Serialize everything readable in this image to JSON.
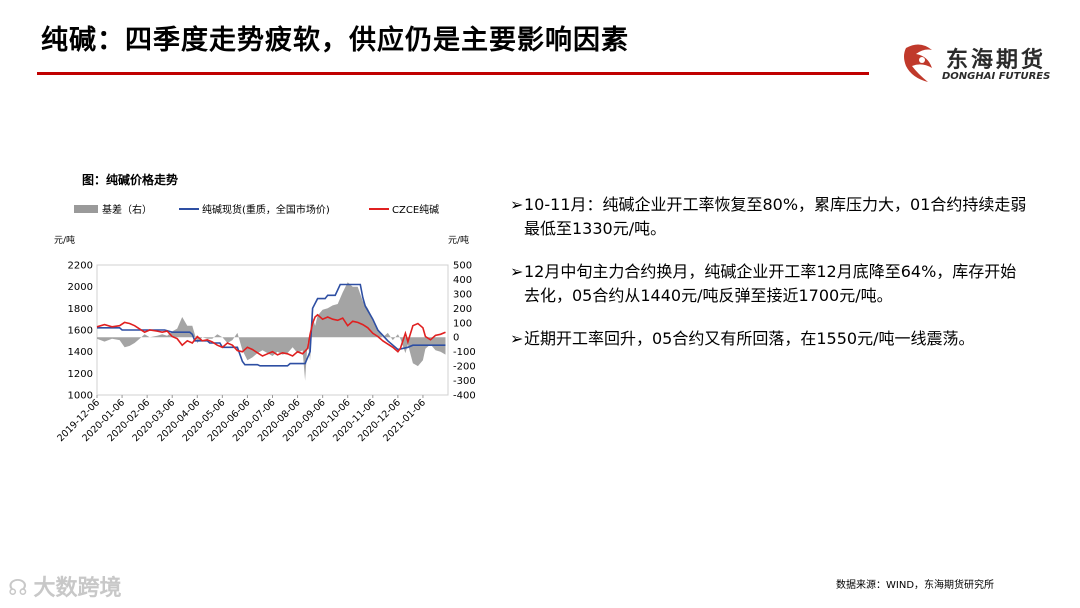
{
  "slide": {
    "title": "纯碱：四季度走势疲软，供应仍是主要影响因素",
    "logo_cn": "东海期货",
    "logo_en": "DONGHAI FUTURES",
    "source": "数据来源：WIND，东海期货研究所",
    "watermark": "大数跨境",
    "bullets": [
      "10-11月：纯碱企业开工率恢复至80%，累库压力大，01合约持续走弱最低至1330元/吨。",
      "12月中旬主力合约换月，纯碱企业开工率12月底降至64%，库存开始去化，05合约从1440元/吨反弹至接近1700元/吨。",
      "近期开工率回升，05合约又有所回落，在1550元/吨一线震荡。"
    ],
    "colors": {
      "accent": "#c00000",
      "spot": "#2e4fa3",
      "futures": "#e02020",
      "basis": "#9a9a9a"
    }
  },
  "chart_data": {
    "type": "line",
    "caption": "图：纯碱价格走势",
    "y_left_label": "元/吨",
    "y_right_label": "元/吨",
    "ylim_left": [
      1000,
      2200
    ],
    "ylim_right": [
      -400,
      500
    ],
    "yticks_left": [
      "2200",
      "2000",
      "1800",
      "1600",
      "1400",
      "1200",
      "1000"
    ],
    "yticks_right": [
      "500",
      "400",
      "300",
      "200",
      "100",
      "0",
      "-100",
      "-200",
      "-300",
      "-400"
    ],
    "x_ticks": [
      "2019-12-06",
      "2020-01-06",
      "2020-02-06",
      "2020-03-06",
      "2020-04-06",
      "2020-05-06",
      "2020-06-06",
      "2020-07-06",
      "2020-08-06",
      "2020-09-06",
      "2020-10-06",
      "2020-11-06",
      "2020-12-06",
      "2021-01-06"
    ],
    "x_range_months": [
      0,
      14
    ],
    "legend": [
      "基差（右）",
      "纯碱现货(重质，全国市场价)",
      "CZCE纯碱"
    ],
    "series": [
      {
        "name": "纯碱现货(重质，全国市场价)",
        "axis": "left",
        "points": [
          [
            0,
            1620
          ],
          [
            0.3,
            1620
          ],
          [
            0.9,
            1620
          ],
          [
            1.0,
            1600
          ],
          [
            1.6,
            1600
          ],
          [
            2.0,
            1600
          ],
          [
            2.7,
            1600
          ],
          [
            3.0,
            1580
          ],
          [
            3.7,
            1580
          ],
          [
            3.8,
            1560
          ],
          [
            3.9,
            1500
          ],
          [
            4.4,
            1500
          ],
          [
            4.5,
            1480
          ],
          [
            4.9,
            1480
          ],
          [
            5.0,
            1440
          ],
          [
            5.6,
            1440
          ],
          [
            5.8,
            1310
          ],
          [
            5.9,
            1280
          ],
          [
            6.4,
            1280
          ],
          [
            6.5,
            1270
          ],
          [
            7.2,
            1270
          ],
          [
            7.6,
            1270
          ],
          [
            7.7,
            1290
          ],
          [
            8.1,
            1290
          ],
          [
            8.3,
            1290
          ],
          [
            8.5,
            1400
          ],
          [
            8.6,
            1800
          ],
          [
            8.8,
            1890
          ],
          [
            9.1,
            1890
          ],
          [
            9.2,
            1920
          ],
          [
            9.5,
            1920
          ],
          [
            9.7,
            2020
          ],
          [
            10.3,
            2020
          ],
          [
            10.5,
            2020
          ],
          [
            10.6,
            1900
          ],
          [
            10.7,
            1820
          ],
          [
            11.0,
            1700
          ],
          [
            11.2,
            1600
          ],
          [
            11.6,
            1500
          ],
          [
            12.0,
            1420
          ],
          [
            12.4,
            1440
          ],
          [
            12.6,
            1460
          ],
          [
            13.1,
            1460
          ],
          [
            13.6,
            1460
          ],
          [
            13.9,
            1460
          ]
        ]
      },
      {
        "name": "CZCE纯碱",
        "axis": "left",
        "points": [
          [
            0,
            1630
          ],
          [
            0.3,
            1650
          ],
          [
            0.6,
            1630
          ],
          [
            0.9,
            1640
          ],
          [
            1.1,
            1670
          ],
          [
            1.3,
            1660
          ],
          [
            1.5,
            1640
          ],
          [
            1.7,
            1610
          ],
          [
            1.9,
            1580
          ],
          [
            2.1,
            1600
          ],
          [
            2.4,
            1590
          ],
          [
            2.6,
            1580
          ],
          [
            2.8,
            1590
          ],
          [
            3.0,
            1540
          ],
          [
            3.2,
            1520
          ],
          [
            3.4,
            1460
          ],
          [
            3.6,
            1500
          ],
          [
            3.8,
            1480
          ],
          [
            4.0,
            1540
          ],
          [
            4.2,
            1500
          ],
          [
            4.4,
            1510
          ],
          [
            4.6,
            1490
          ],
          [
            4.8,
            1460
          ],
          [
            5.0,
            1440
          ],
          [
            5.2,
            1480
          ],
          [
            5.4,
            1460
          ],
          [
            5.6,
            1410
          ],
          [
            5.8,
            1400
          ],
          [
            6.0,
            1440
          ],
          [
            6.2,
            1420
          ],
          [
            6.4,
            1390
          ],
          [
            6.6,
            1360
          ],
          [
            6.8,
            1380
          ],
          [
            7.0,
            1400
          ],
          [
            7.2,
            1370
          ],
          [
            7.4,
            1390
          ],
          [
            7.6,
            1380
          ],
          [
            7.8,
            1360
          ],
          [
            8.0,
            1400
          ],
          [
            8.2,
            1380
          ],
          [
            8.4,
            1430
          ],
          [
            8.5,
            1560
          ],
          [
            8.6,
            1660
          ],
          [
            8.7,
            1720
          ],
          [
            8.8,
            1740
          ],
          [
            9.0,
            1700
          ],
          [
            9.2,
            1720
          ],
          [
            9.4,
            1700
          ],
          [
            9.6,
            1690
          ],
          [
            9.8,
            1710
          ],
          [
            10.0,
            1640
          ],
          [
            10.2,
            1680
          ],
          [
            10.4,
            1670
          ],
          [
            10.6,
            1650
          ],
          [
            10.8,
            1620
          ],
          [
            11.0,
            1570
          ],
          [
            11.2,
            1540
          ],
          [
            11.4,
            1500
          ],
          [
            11.6,
            1470
          ],
          [
            11.8,
            1440
          ],
          [
            12.0,
            1400
          ],
          [
            12.1,
            1430
          ],
          [
            12.3,
            1570
          ],
          [
            12.4,
            1490
          ],
          [
            12.6,
            1640
          ],
          [
            12.8,
            1660
          ],
          [
            13.0,
            1620
          ],
          [
            13.1,
            1540
          ],
          [
            13.3,
            1510
          ],
          [
            13.5,
            1550
          ],
          [
            13.7,
            1560
          ],
          [
            13.9,
            1580
          ]
        ]
      },
      {
        "name": "基差（右）",
        "axis": "right",
        "type": "area",
        "points": [
          [
            0,
            -10
          ],
          [
            0.3,
            -30
          ],
          [
            0.6,
            -10
          ],
          [
            0.9,
            -20
          ],
          [
            1.1,
            -70
          ],
          [
            1.3,
            -60
          ],
          [
            1.5,
            -40
          ],
          [
            1.7,
            -10
          ],
          [
            1.9,
            20
          ],
          [
            2.1,
            0
          ],
          [
            2.4,
            10
          ],
          [
            2.6,
            20
          ],
          [
            2.8,
            10
          ],
          [
            3.0,
            40
          ],
          [
            3.2,
            60
          ],
          [
            3.4,
            140
          ],
          [
            3.6,
            80
          ],
          [
            3.8,
            80
          ],
          [
            4.0,
            -40
          ],
          [
            4.2,
            0
          ],
          [
            4.4,
            -10
          ],
          [
            4.6,
            -10
          ],
          [
            4.8,
            20
          ],
          [
            5.0,
            0
          ],
          [
            5.2,
            -40
          ],
          [
            5.4,
            -20
          ],
          [
            5.6,
            30
          ],
          [
            5.8,
            -90
          ],
          [
            6.0,
            -160
          ],
          [
            6.2,
            -140
          ],
          [
            6.4,
            -110
          ],
          [
            6.6,
            -90
          ],
          [
            6.8,
            -110
          ],
          [
            7.0,
            -130
          ],
          [
            7.2,
            -100
          ],
          [
            7.4,
            -120
          ],
          [
            7.6,
            -110
          ],
          [
            7.8,
            -70
          ],
          [
            8.0,
            -110
          ],
          [
            8.2,
            -90
          ],
          [
            8.3,
            -300
          ],
          [
            8.4,
            -30
          ],
          [
            8.5,
            -160
          ],
          [
            8.6,
            140
          ],
          [
            8.7,
            80
          ],
          [
            8.8,
            150
          ],
          [
            9.0,
            190
          ],
          [
            9.2,
            200
          ],
          [
            9.4,
            220
          ],
          [
            9.6,
            230
          ],
          [
            9.8,
            310
          ],
          [
            10.0,
            380
          ],
          [
            10.2,
            350
          ],
          [
            10.4,
            350
          ],
          [
            10.6,
            250
          ],
          [
            10.8,
            200
          ],
          [
            11.0,
            130
          ],
          [
            11.2,
            60
          ],
          [
            11.4,
            0
          ],
          [
            11.6,
            30
          ],
          [
            11.8,
            -20
          ],
          [
            12.0,
            20
          ],
          [
            12.1,
            -10
          ],
          [
            12.3,
            -110
          ],
          [
            12.4,
            -50
          ],
          [
            12.6,
            -180
          ],
          [
            12.8,
            -200
          ],
          [
            13.0,
            -160
          ],
          [
            13.1,
            -80
          ],
          [
            13.3,
            -50
          ],
          [
            13.5,
            -90
          ],
          [
            13.7,
            -100
          ],
          [
            13.9,
            -120
          ]
        ]
      }
    ]
  }
}
